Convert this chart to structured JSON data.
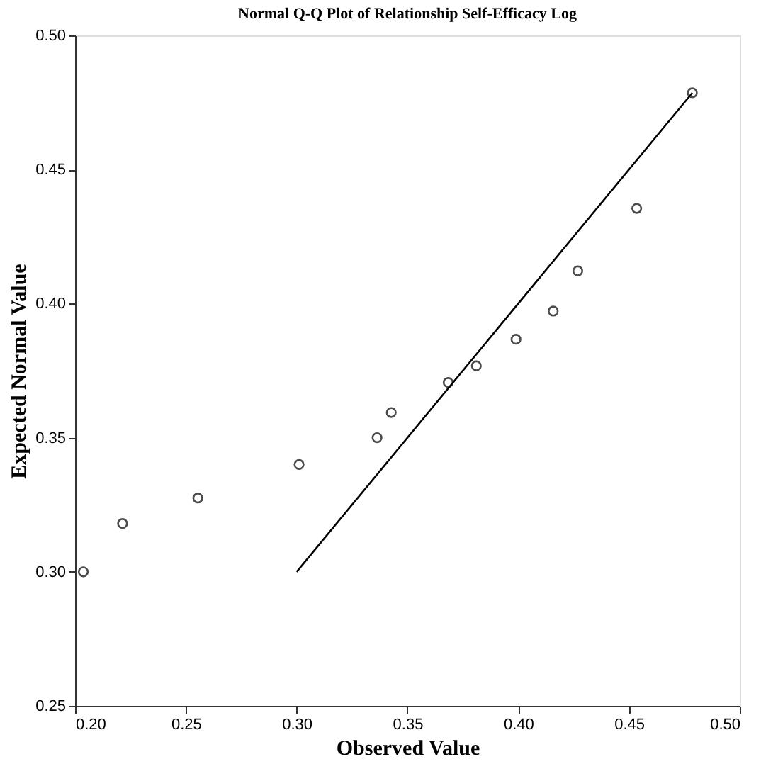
{
  "chart_data": {
    "type": "scatter",
    "title": "Normal Q-Q Plot of Relationship Self-Efficacy Log",
    "xlabel": "Observed Value",
    "ylabel": "Expected Normal Value",
    "series": [
      {
        "color": "#000000",
        "marker": "circle",
        "x": [
          0.2037,
          0.2214,
          0.2554,
          0.3011,
          0.3363,
          0.3427,
          0.3684,
          0.3811,
          0.399,
          0.4158,
          0.4269,
          0.4535,
          0.4786
        ],
        "values": [
          0.3,
          0.318,
          0.3275,
          0.34,
          0.35,
          0.3594,
          0.3706,
          0.3768,
          0.3867,
          0.3972,
          0.4122,
          0.4355,
          0.4786
        ]
      },
      {
        "type": "line",
        "color": "#000000",
        "line_style": "solid",
        "x": [
          0.3,
          0.4786
        ],
        "values": [
          0.3,
          0.4786
        ]
      }
    ],
    "xlim": [
      0.2,
      0.5
    ],
    "ylim": [
      0.25,
      0.5
    ],
    "xticks": [
      {
        "value": 0.2,
        "label": "0.20"
      },
      {
        "value": 0.25,
        "label": "0.25"
      },
      {
        "value": 0.3,
        "label": "0.30"
      },
      {
        "value": 0.35,
        "label": "0.35"
      },
      {
        "value": 0.4,
        "label": "0.40"
      },
      {
        "value": 0.45,
        "label": "0.45"
      },
      {
        "value": 0.5,
        "label": "0.50"
      }
    ],
    "yticks": [
      {
        "value": 0.25,
        "label": "0.25"
      },
      {
        "value": 0.3,
        "label": "0.30"
      },
      {
        "value": 0.35,
        "label": "0.35"
      },
      {
        "value": 0.4,
        "label": "0.40"
      },
      {
        "value": 0.45,
        "label": "0.45"
      },
      {
        "value": 0.5,
        "label": "0.50"
      }
    ],
    "grid": false
  }
}
